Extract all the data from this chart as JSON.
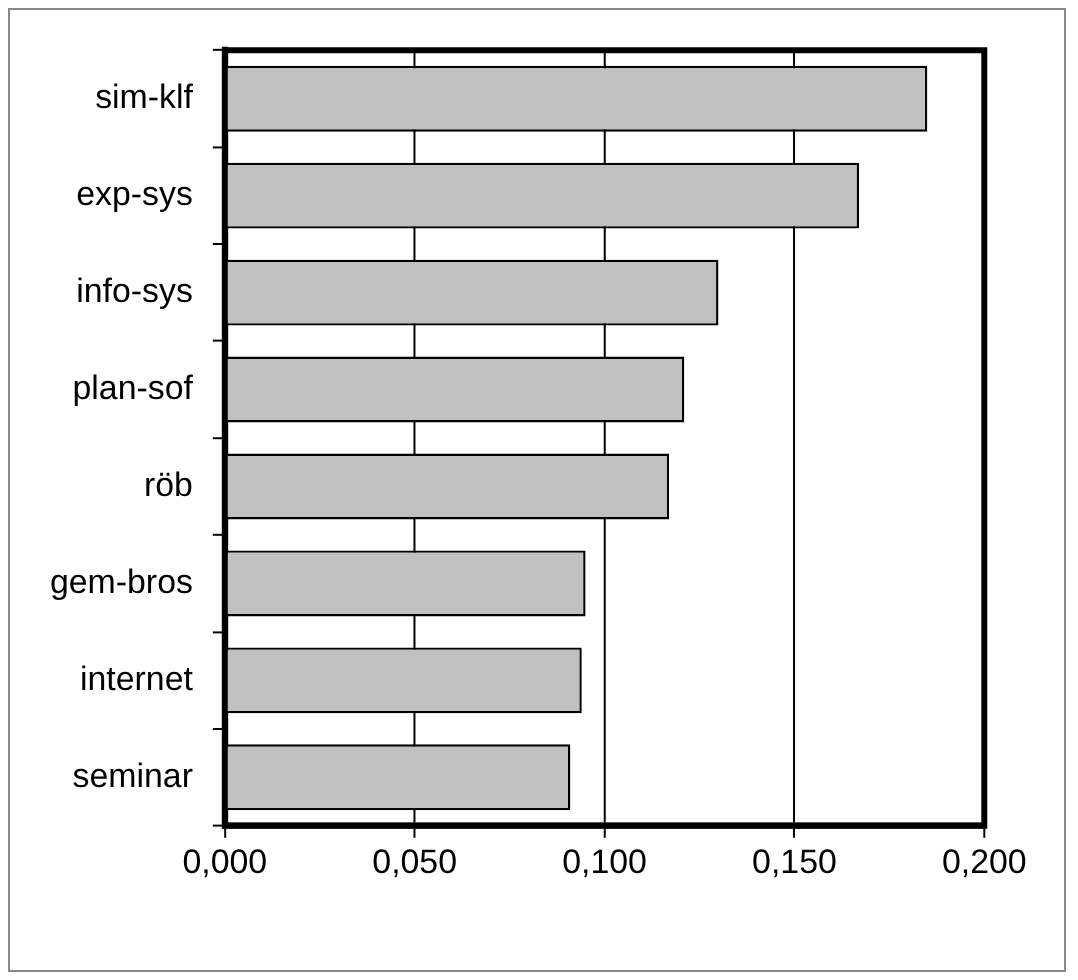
{
  "chart_data": {
    "type": "bar",
    "orientation": "horizontal",
    "categories": [
      "sim-klf",
      "exp-sys",
      "info-sys",
      "plan-sof",
      "röb",
      "gem-bros",
      "internet",
      "seminar"
    ],
    "values": [
      0.185,
      0.167,
      0.13,
      0.121,
      0.117,
      0.095,
      0.094,
      0.091
    ],
    "color": "#c0c0c0",
    "xlim": [
      0,
      0.2
    ],
    "xticks": [
      {
        "value": 0,
        "label": "0,000"
      },
      {
        "value": 0.05,
        "label": "0,050"
      },
      {
        "value": 0.1,
        "label": "0,100"
      },
      {
        "value": 0.15,
        "label": "0,150"
      },
      {
        "value": 0.2,
        "label": "0,200"
      }
    ],
    "grid": "x",
    "legend": false
  }
}
